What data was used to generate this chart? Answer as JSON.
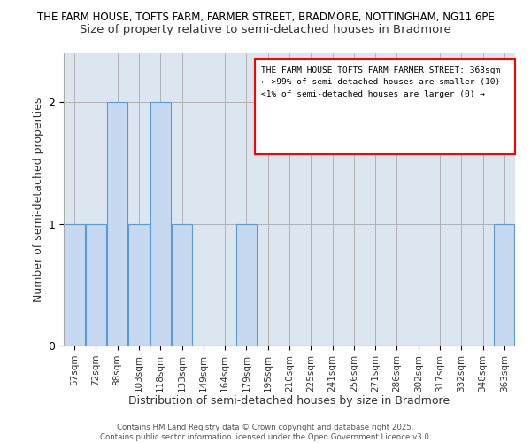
{
  "title_line1": "THE FARM HOUSE, TOFTS FARM, FARMER STREET, BRADMORE, NOTTINGHAM, NG11 6PE",
  "title_line2": "Size of property relative to semi-detached houses in Bradmore",
  "xlabel": "Distribution of semi-detached houses by size in Bradmore",
  "ylabel": "Number of semi-detached properties",
  "categories": [
    "57sqm",
    "72sqm",
    "88sqm",
    "103sqm",
    "118sqm",
    "133sqm",
    "149sqm",
    "164sqm",
    "179sqm",
    "195sqm",
    "210sqm",
    "225sqm",
    "241sqm",
    "256sqm",
    "271sqm",
    "286sqm",
    "302sqm",
    "317sqm",
    "332sqm",
    "348sqm",
    "363sqm"
  ],
  "values": [
    1,
    1,
    2,
    1,
    2,
    1,
    0,
    0,
    1,
    0,
    0,
    0,
    0,
    0,
    0,
    0,
    0,
    0,
    0,
    0,
    1
  ],
  "bar_color": "#c6d9f1",
  "bar_edge_color": "#5b9bd5",
  "ylim": [
    0,
    2.4
  ],
  "yticks": [
    0,
    1,
    2
  ],
  "annotation_text": "THE FARM HOUSE TOFTS FARM FARMER STREET: 363sqm\n← >99% of semi-detached houses are smaller (10)\n<1% of semi-detached houses are larger (0) →",
  "annotation_box_edgecolor": "#ff0000",
  "footer_text": "Contains HM Land Registry data © Crown copyright and database right 2025.\nContains public sector information licensed under the Open Government Licence v3.0.",
  "background_color": "#ffffff",
  "title1_fontsize": 8.5,
  "title2_fontsize": 9.5,
  "ax_facecolor": "#dce6f1"
}
